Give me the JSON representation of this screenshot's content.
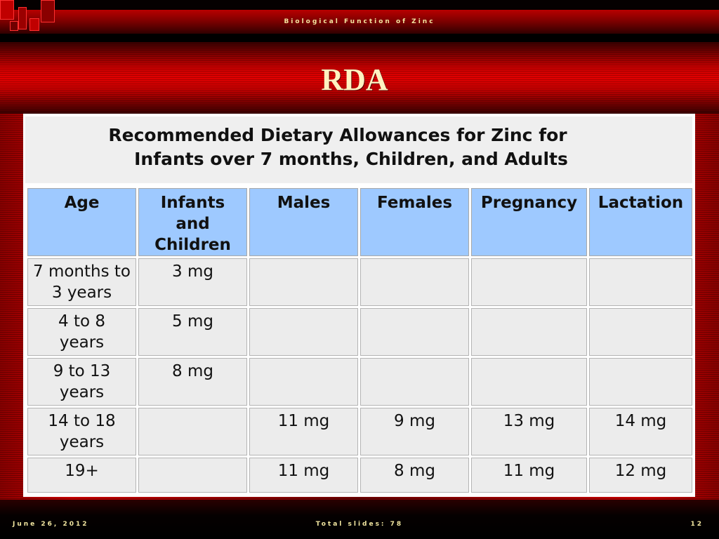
{
  "slide": {
    "header": "Biological Function of Zinc",
    "title": "RDA",
    "footer": {
      "date": "June 26, 2012",
      "total_slides": "Total slides: 78",
      "page": "12"
    }
  },
  "table": {
    "caption": {
      "line1": "Recommended Dietary Allowances for Zinc for",
      "line2": "Infants over 7 months, Children, and Adults"
    },
    "columns": [
      "Age",
      "Infants and Children",
      "Males",
      "Females",
      "Pregnancy",
      "Lactation"
    ],
    "rows": [
      [
        "7 months to 3 years",
        "3 mg",
        "",
        "",
        "",
        ""
      ],
      [
        "4 to 8 years",
        "5 mg",
        "",
        "",
        "",
        ""
      ],
      [
        "9 to 13 years",
        "8 mg",
        "",
        "",
        "",
        ""
      ],
      [
        "14 to 18 years",
        "",
        "11 mg",
        "9 mg",
        "13 mg",
        "14 mg"
      ],
      [
        "19+",
        "",
        "11 mg",
        "8 mg",
        "11 mg",
        "12 mg"
      ]
    ]
  },
  "colors": {
    "header_cell": "#9ec9ff",
    "body_cell": "#ececec",
    "slide_red": "#c80000",
    "header_text": "#f2e6a0"
  }
}
